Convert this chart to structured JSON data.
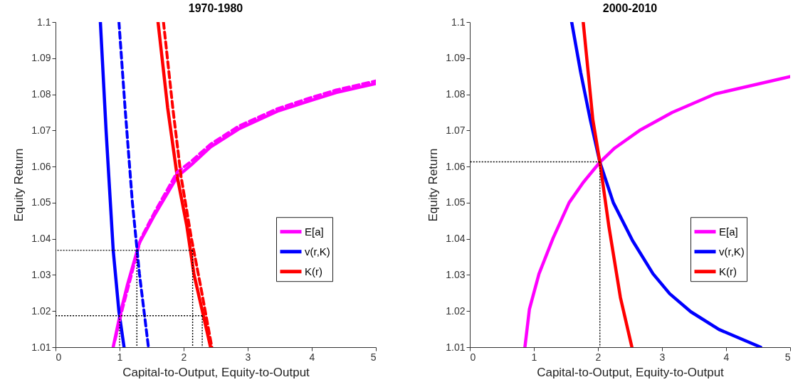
{
  "chart_data": [
    {
      "type": "line",
      "title": "1970-1980",
      "xlabel": "Capital-to-Output, Equity-to-Output",
      "ylabel": "Equity Return",
      "xlim": [
        0,
        5
      ],
      "ylim": [
        1.01,
        1.1
      ],
      "xticks": [
        0,
        1,
        2,
        3,
        4,
        5
      ],
      "yticks": [
        1.01,
        1.02,
        1.03,
        1.04,
        1.05,
        1.06,
        1.07,
        1.08,
        1.09,
        1.1
      ],
      "legend": "right",
      "marker": "none",
      "series": [
        {
          "name": "E[a]",
          "color": "#ff00ff",
          "line_style": "solid",
          "x": [
            0.9,
            1.01,
            1.12,
            1.31,
            1.53,
            1.9,
            2.12,
            2.42,
            2.86,
            3.46,
            3.97,
            4.38,
            5.0
          ],
          "values": [
            1.01,
            1.0192,
            1.0271,
            1.0389,
            1.0461,
            1.0572,
            1.0605,
            1.0654,
            1.0704,
            1.0753,
            1.0782,
            1.0805,
            1.083
          ]
        },
        {
          "name": "v(r,K)",
          "color": "#0000ff",
          "line_style": "solid",
          "x": [
            0.7,
            0.79,
            0.9,
            0.99,
            1.07
          ],
          "values": [
            1.1,
            1.0697,
            1.0369,
            1.0198,
            1.01
          ]
        },
        {
          "name": "K(r)",
          "color": "#ff0000",
          "line_style": "solid",
          "x": [
            1.6,
            1.75,
            1.9,
            2.05,
            2.16,
            2.42
          ],
          "values": [
            1.1,
            1.0763,
            1.0572,
            1.0435,
            1.0303,
            1.01
          ]
        },
        {
          "color": "#ff00ff",
          "line_style": "dashed",
          "x": [
            0.93,
            1.05,
            1.17,
            1.33,
            1.55,
            1.9,
            2.12,
            2.42,
            2.86,
            3.46,
            3.97,
            4.38,
            5.0
          ],
          "values": [
            1.012,
            1.021,
            1.029,
            1.04,
            1.0475,
            1.0585,
            1.0615,
            1.0662,
            1.0712,
            1.076,
            1.079,
            1.0812,
            1.0837
          ]
        },
        {
          "color": "#0000ff",
          "line_style": "dashed",
          "x": [
            0.99,
            1.085,
            1.2,
            1.31,
            1.45
          ],
          "values": [
            1.1,
            1.0763,
            1.05,
            1.0303,
            1.01
          ]
        },
        {
          "color": "#ff0000",
          "line_style": "dashed",
          "x": [
            1.685,
            1.83,
            1.96,
            2.12,
            2.27,
            2.44
          ],
          "values": [
            1.1,
            1.0763,
            1.0572,
            1.0402,
            1.0264,
            1.01
          ]
        },
        {
          "color": "#000000",
          "line_style": "dotted",
          "x": [
            2.14,
            0
          ],
          "values": [
            1.0368,
            1.0368
          ]
        },
        {
          "color": "#000000",
          "line_style": "dotted",
          "x": [
            1.27,
            1.27
          ],
          "values": [
            1.0368,
            1.01
          ]
        },
        {
          "color": "#000000",
          "line_style": "dotted",
          "x": [
            2.14,
            2.14
          ],
          "values": [
            1.0368,
            1.01
          ]
        },
        {
          "color": "#000000",
          "line_style": "dotted",
          "x": [
            2.29,
            0
          ],
          "values": [
            1.0187,
            1.0187
          ]
        },
        {
          "color": "#000000",
          "line_style": "dotted",
          "x": [
            1.0,
            1.0
          ],
          "values": [
            1.0187,
            1.01
          ]
        },
        {
          "color": "#000000",
          "line_style": "dotted",
          "x": [
            2.29,
            2.29
          ],
          "values": [
            1.0187,
            1.01
          ]
        }
      ]
    },
    {
      "type": "line",
      "title": "2000-2010",
      "xlabel": "Capital-to-Output, Equity-to-Output",
      "ylabel": "Equity Return",
      "xlim": [
        0,
        5
      ],
      "ylim": [
        1.01,
        1.1
      ],
      "xticks": [
        0,
        1,
        2,
        3,
        4,
        5
      ],
      "yticks": [
        1.01,
        1.02,
        1.03,
        1.04,
        1.05,
        1.06,
        1.07,
        1.08,
        1.09,
        1.1
      ],
      "legend": "right",
      "marker": "none",
      "series": [
        {
          "name": "E[a]",
          "color": "#ff00ff",
          "line_style": "solid",
          "x": [
            0.86,
            0.93,
            1.08,
            1.3,
            1.55,
            1.77,
            2.03,
            2.26,
            2.65,
            3.16,
            3.83,
            5.0
          ],
          "values": [
            1.01,
            1.0205,
            1.0303,
            1.0402,
            1.05,
            1.0556,
            1.0612,
            1.0651,
            1.07,
            1.075,
            1.0801,
            1.0849
          ]
        },
        {
          "name": "v(r,K)",
          "color": "#0000ff",
          "line_style": "solid",
          "x": [
            1.59,
            1.73,
            1.88,
            2.03,
            2.24,
            2.54,
            2.86,
            3.12,
            3.45,
            3.89,
            4.54
          ],
          "values": [
            1.1,
            1.0861,
            1.073,
            1.0612,
            1.05,
            1.0395,
            1.0303,
            1.0248,
            1.0198,
            1.0149,
            1.01
          ]
        },
        {
          "name": "K(r)",
          "color": "#ff0000",
          "line_style": "solid",
          "x": [
            1.77,
            1.92,
            2.03,
            2.17,
            2.35,
            2.53
          ],
          "values": [
            1.1,
            1.073,
            1.0612,
            1.0435,
            1.0238,
            1.01
          ]
        },
        {
          "color": "#000000",
          "line_style": "dotted",
          "x": [
            2.03,
            0
          ],
          "values": [
            1.0613,
            1.0613
          ]
        },
        {
          "color": "#000000",
          "line_style": "dotted",
          "x": [
            2.03,
            2.03
          ],
          "values": [
            1.0613,
            1.01
          ]
        }
      ]
    }
  ]
}
